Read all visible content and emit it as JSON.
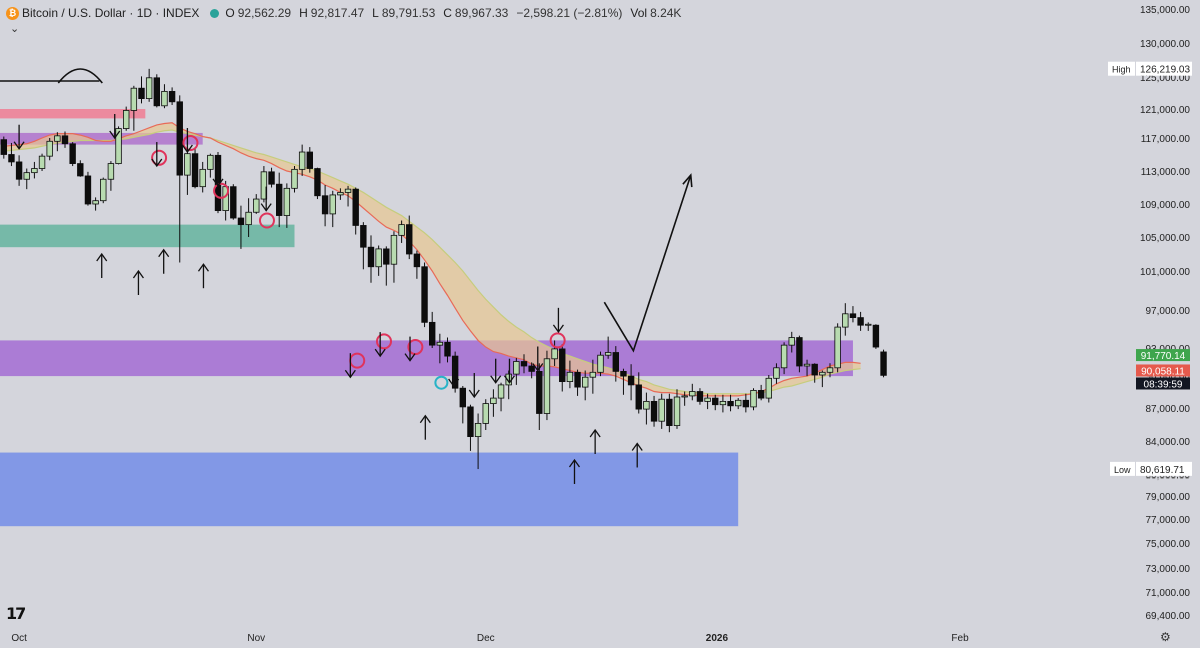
{
  "header": {
    "symbol": "Bitcoin / U.S. Dollar · 1D · INDEX",
    "coin_glyph": "₿",
    "open_label": "O",
    "open": "92,562.29",
    "high_label": "H",
    "high": "92,817.47",
    "low_label": "L",
    "low": "89,791.53",
    "close_label": "C",
    "close": "89,967.33",
    "change": "−2,598.21 (−2.81%)",
    "vol_label": "Vol",
    "vol": "8.24K",
    "expand_icon": "chevron-down-icon"
  },
  "chart_data": {
    "type": "candlestick",
    "title": "Bitcoin / U.S. Dollar · 1D · INDEX",
    "ylim": [
      67500,
      136500
    ],
    "y_ticks": [
      "135,000.00",
      "130,000.00",
      "125,000.00",
      "121,000.00",
      "117,000.00",
      "113,000.00",
      "109,000.00",
      "105,000.00",
      "101,000.00",
      "97,000.00",
      "93,000.00",
      "90,000.00",
      "87,000.00",
      "84,000.00",
      "80,000.00",
      "79,000.00",
      "77,000.00",
      "75,000.00",
      "73,000.00",
      "71,000.00",
      "69,400.00"
    ],
    "x_ticks": [
      {
        "label": "Oct",
        "idx": 2
      },
      {
        "label": "Nov",
        "idx": 33
      },
      {
        "label": "Dec",
        "idx": 63
      },
      {
        "label": "2026",
        "idx": 94
      },
      {
        "label": "Feb",
        "idx": 125
      }
    ],
    "candles": [
      [
        116800,
        117200,
        114500,
        115000
      ],
      [
        115000,
        116400,
        113600,
        114100
      ],
      [
        114100,
        114900,
        111200,
        112000
      ],
      [
        112000,
        113300,
        110800,
        112800
      ],
      [
        112800,
        114100,
        112100,
        113300
      ],
      [
        113300,
        115100,
        113000,
        114800
      ],
      [
        114800,
        117000,
        114300,
        116600
      ],
      [
        116600,
        117800,
        115400,
        117300
      ],
      [
        117300,
        117900,
        115800,
        116300
      ],
      [
        116300,
        116500,
        113600,
        113900
      ],
      [
        113900,
        114300,
        112300,
        112400
      ],
      [
        112400,
        112900,
        108800,
        109000
      ],
      [
        109000,
        109800,
        108200,
        109400
      ],
      [
        109400,
        112200,
        109100,
        112000
      ],
      [
        112000,
        114200,
        110600,
        113900
      ],
      [
        113900,
        118600,
        113800,
        118300
      ],
      [
        118300,
        121300,
        118000,
        120800
      ],
      [
        120800,
        123900,
        118000,
        123600
      ],
      [
        123600,
        125100,
        121700,
        122300
      ],
      [
        122300,
        126200,
        121900,
        124900
      ],
      [
        124900,
        125400,
        121200,
        121400
      ],
      [
        121400,
        124100,
        121100,
        123200
      ],
      [
        123200,
        123700,
        121500,
        121900
      ],
      [
        121900,
        122700,
        102000,
        112500
      ],
      [
        112500,
        115300,
        110100,
        115100
      ],
      [
        115100,
        115800,
        110900,
        111100
      ],
      [
        111100,
        114100,
        110400,
        113200
      ],
      [
        113200,
        115100,
        112200,
        114900
      ],
      [
        114900,
        115300,
        107900,
        108200
      ],
      [
        108200,
        111800,
        107000,
        111100
      ],
      [
        111100,
        111400,
        107100,
        107300
      ],
      [
        107300,
        108800,
        103600,
        106500
      ],
      [
        106500,
        109700,
        105000,
        108000
      ],
      [
        108000,
        110200,
        107800,
        109600
      ],
      [
        109600,
        113600,
        109200,
        112900
      ],
      [
        112900,
        113400,
        111000,
        111400
      ],
      [
        111400,
        112800,
        106200,
        107600
      ],
      [
        107600,
        111500,
        106100,
        110900
      ],
      [
        110900,
        113600,
        110400,
        113200
      ],
      [
        113200,
        116200,
        112400,
        115300
      ],
      [
        115300,
        115900,
        112800,
        113300
      ],
      [
        113300,
        113400,
        109600,
        110000
      ],
      [
        110000,
        111300,
        106300,
        107800
      ],
      [
        107800,
        110600,
        106200,
        110100
      ],
      [
        110100,
        110900,
        109500,
        110400
      ],
      [
        110400,
        111200,
        108700,
        110800
      ],
      [
        110800,
        111000,
        105300,
        106400
      ],
      [
        106400,
        106800,
        101200,
        103800
      ],
      [
        103800,
        105200,
        99800,
        101500
      ],
      [
        101500,
        104000,
        100500,
        103600
      ],
      [
        103600,
        103900,
        99500,
        101800
      ],
      [
        101800,
        105700,
        99800,
        105200
      ],
      [
        105200,
        107000,
        104300,
        106500
      ],
      [
        106500,
        107600,
        102400,
        103000
      ],
      [
        103000,
        103400,
        100200,
        101500
      ],
      [
        101500,
        102000,
        95200,
        95700
      ],
      [
        95700,
        96800,
        93000,
        93300
      ],
      [
        93300,
        94500,
        91300,
        93600
      ],
      [
        93600,
        94100,
        91400,
        92100
      ],
      [
        92100,
        92600,
        88400,
        88800
      ],
      [
        88800,
        89000,
        85600,
        87100
      ],
      [
        87100,
        87300,
        82800,
        84400
      ],
      [
        84400,
        86500,
        80600,
        85600
      ],
      [
        85600,
        87800,
        85000,
        87400
      ],
      [
        87400,
        88700,
        86200,
        87900
      ],
      [
        87900,
        89300,
        86700,
        89100
      ],
      [
        89100,
        90500,
        87800,
        90100
      ],
      [
        90100,
        91900,
        89100,
        91500
      ],
      [
        91500,
        92300,
        90200,
        91000
      ],
      [
        91000,
        91400,
        89700,
        90400
      ],
      [
        90400,
        91300,
        85000,
        86500
      ],
      [
        86500,
        92700,
        85900,
        91800
      ],
      [
        91800,
        93800,
        91000,
        92900
      ],
      [
        92900,
        93400,
        88500,
        89400
      ],
      [
        89400,
        91600,
        88800,
        90300
      ],
      [
        90300,
        90600,
        88100,
        88900
      ],
      [
        88900,
        90500,
        87700,
        89800
      ],
      [
        89800,
        91700,
        88300,
        90300
      ],
      [
        90300,
        92600,
        89900,
        92200
      ],
      [
        92200,
        94200,
        91800,
        92500
      ],
      [
        92500,
        93200,
        89400,
        90400
      ],
      [
        90400,
        90700,
        88200,
        89900
      ],
      [
        89900,
        91200,
        87700,
        89100
      ],
      [
        89100,
        90300,
        86500,
        86900
      ],
      [
        86900,
        88400,
        85500,
        87600
      ],
      [
        87600,
        88100,
        85300,
        85800
      ],
      [
        85800,
        88300,
        85100,
        87800
      ],
      [
        87800,
        88300,
        84800,
        85400
      ],
      [
        85400,
        88700,
        85100,
        88000
      ],
      [
        88000,
        88500,
        87200,
        88100
      ],
      [
        88100,
        89200,
        87700,
        88500
      ],
      [
        88500,
        88800,
        87300,
        87600
      ],
      [
        87600,
        88300,
        86900,
        87900
      ],
      [
        87900,
        88200,
        86800,
        87300
      ],
      [
        87300,
        88200,
        86600,
        87600
      ],
      [
        87600,
        88200,
        86700,
        87200
      ],
      [
        87200,
        87900,
        86900,
        87700
      ],
      [
        87700,
        88300,
        86600,
        87100
      ],
      [
        87100,
        88800,
        86800,
        88600
      ],
      [
        88600,
        89100,
        87700,
        87900
      ],
      [
        87900,
        90000,
        87500,
        89700
      ],
      [
        89700,
        91300,
        89200,
        90800
      ],
      [
        90800,
        93600,
        90100,
        93300
      ],
      [
        93300,
        94700,
        92500,
        94100
      ],
      [
        94100,
        94300,
        90300,
        91000
      ],
      [
        91000,
        91700,
        89900,
        91200
      ],
      [
        91200,
        91300,
        89300,
        90000
      ],
      [
        90000,
        90500,
        88900,
        90300
      ],
      [
        90300,
        91300,
        89800,
        90800
      ],
      [
        90800,
        95600,
        90300,
        95200
      ],
      [
        95200,
        97700,
        94300,
        96600
      ],
      [
        96600,
        97400,
        95700,
        96200
      ],
      [
        96200,
        96800,
        94800,
        95400
      ],
      [
        95400,
        95700,
        94800,
        95500
      ],
      [
        95400,
        95500,
        92900,
        93100
      ],
      [
        92562,
        92817,
        89792,
        89967
      ]
    ],
    "ribbon": {
      "fast": [
        116000,
        116100,
        116200,
        116300,
        116600,
        117000,
        117400,
        117600,
        117600,
        117600,
        117400,
        117100,
        116700,
        116600,
        116600,
        116900,
        117300,
        117600,
        118000,
        118400,
        118800,
        119000,
        119100,
        118400,
        117900,
        117600,
        117200,
        117000,
        116500,
        116100,
        115700,
        115200,
        114800,
        114500,
        114300,
        113900,
        113400,
        113000,
        112800,
        112600,
        112300,
        111900,
        111300,
        110900,
        110400,
        110000,
        109300,
        108500,
        107700,
        106900,
        106200,
        105800,
        105300,
        104500,
        103500,
        102300,
        101000,
        99700,
        98500,
        97200,
        95900,
        94800,
        93800,
        93100,
        92600,
        92400,
        92100,
        91900,
        91700,
        91200,
        91000,
        91000,
        90900,
        90700,
        90500,
        90300,
        90200,
        90200,
        90200,
        90100,
        89900,
        89600,
        89300,
        89000,
        88800,
        88500,
        88400,
        88400,
        88300,
        88200,
        88200,
        88100,
        88100,
        88100,
        88100,
        88100,
        88100,
        88200,
        88300,
        88500,
        88800,
        89200,
        89500,
        89700,
        89800,
        89900,
        90200,
        90600,
        91000,
        91200,
        91400,
        91400,
        91300
      ],
      "slow": [
        115400,
        115500,
        115600,
        115700,
        115800,
        116000,
        116200,
        116400,
        116500,
        116600,
        116700,
        116700,
        116700,
        116700,
        116700,
        116800,
        116900,
        117100,
        117300,
        117500,
        117800,
        118000,
        118100,
        117800,
        117600,
        117400,
        117200,
        117000,
        116700,
        116400,
        116100,
        115800,
        115500,
        115200,
        115000,
        114700,
        114400,
        114100,
        113800,
        113500,
        113300,
        113000,
        112600,
        112200,
        111800,
        111400,
        110900,
        110400,
        109800,
        109200,
        108600,
        108100,
        107600,
        106900,
        106200,
        105500,
        104700,
        103800,
        102900,
        102000,
        101000,
        100000,
        99000,
        98100,
        97300,
        96500,
        95800,
        95200,
        94700,
        94100,
        93600,
        93200,
        92800,
        92400,
        92100,
        91800,
        91500,
        91200,
        91000,
        90800,
        90500,
        90200,
        89900,
        89600,
        89400,
        89100,
        88900,
        88700,
        88600,
        88500,
        88400,
        88400,
        88300,
        88300,
        88300,
        88300,
        88300,
        88300,
        88300,
        88400,
        88500,
        88700,
        88900,
        89000,
        89200,
        89400,
        89600,
        89800,
        90100,
        90300,
        90500,
        90600,
        90700
      ]
    },
    "zones": [
      {
        "name": "red-zone",
        "y_top": 121000,
        "y_bottom": 119700,
        "x_end_idx": 18.5,
        "color": "#ec8a9e"
      },
      {
        "name": "purple-upper-zone",
        "y_top": 117700,
        "y_bottom": 116200,
        "x_end_idx": 26,
        "color": "#b581cf"
      },
      {
        "name": "green-zone",
        "y_top": 106500,
        "y_bottom": 103800,
        "x_end_idx": 38,
        "color": "#76b9a8"
      },
      {
        "name": "purple-main-zone",
        "y_top": 93800,
        "y_bottom": 89900,
        "x_end_idx": 111,
        "color": "#ab7cd5"
      },
      {
        "name": "blue-zone",
        "y_top": 82600,
        "y_bottom": 76400,
        "x_end_idx": 96,
        "color": "#8298e6"
      }
    ],
    "resistance_line": {
      "price": 124500,
      "x_start_idx": -1,
      "x_end_idx": 12.5
    },
    "arc": {
      "center_idx": 10,
      "price": 124000
    },
    "down_arrows": [
      [
        2,
        115700
      ],
      [
        14.5,
        117000
      ],
      [
        20,
        113600
      ],
      [
        24,
        115300
      ],
      [
        28,
        111200
      ],
      [
        34.3,
        108200
      ],
      [
        45.3,
        89800
      ],
      [
        49.2,
        92100
      ],
      [
        53.1,
        91600
      ],
      [
        58.8,
        89000
      ],
      [
        61.5,
        88000
      ],
      [
        64.3,
        89300
      ],
      [
        66.1,
        89300
      ],
      [
        69.8,
        90500
      ],
      [
        72.5,
        94700
      ]
    ],
    "up_arrows": [
      [
        12.8,
        103000
      ],
      [
        17.6,
        101000
      ],
      [
        20.9,
        103500
      ],
      [
        26.1,
        101800
      ],
      [
        55.1,
        86300
      ],
      [
        74.6,
        81700
      ],
      [
        77.3,
        85000
      ],
      [
        82.8,
        83700
      ]
    ],
    "circles_red": [
      [
        20.3,
        114600
      ],
      [
        24.4,
        116400
      ],
      [
        28.4,
        110600
      ],
      [
        34.4,
        107000
      ],
      [
        46.2,
        91600
      ],
      [
        49.7,
        93700
      ],
      [
        53.8,
        93100
      ],
      [
        72.4,
        93800
      ]
    ],
    "circles_cyan": [
      [
        57.2,
        89300
      ]
    ],
    "projection_lines": [
      [
        78.5,
        97800
      ],
      [
        82.3,
        92700
      ],
      [
        89.8,
        112500
      ]
    ],
    "last_index": 112,
    "labels": {
      "high_tag": "High",
      "high_value": "126,219.03",
      "low_tag": "Low",
      "low_value": "80,619.71",
      "price_green": "91,770.14",
      "price_green_level": 91770,
      "price_red": "90,058.11",
      "price_red_level": 90058,
      "countdown": "08:39:59",
      "ghost_tick": "80,000.00"
    },
    "colors": {
      "up_body": "#b8dbb0",
      "down_body": "#0d0d0d",
      "wick": "#0d0d0d",
      "fast": "#e86a58",
      "slow": "#c6cd7d",
      "ribbon": "#e8c690",
      "green_tag": "#3ea54d",
      "red_tag": "#e55a4d",
      "clock_tag": "#131722"
    }
  },
  "footer": {
    "logo": "17"
  }
}
